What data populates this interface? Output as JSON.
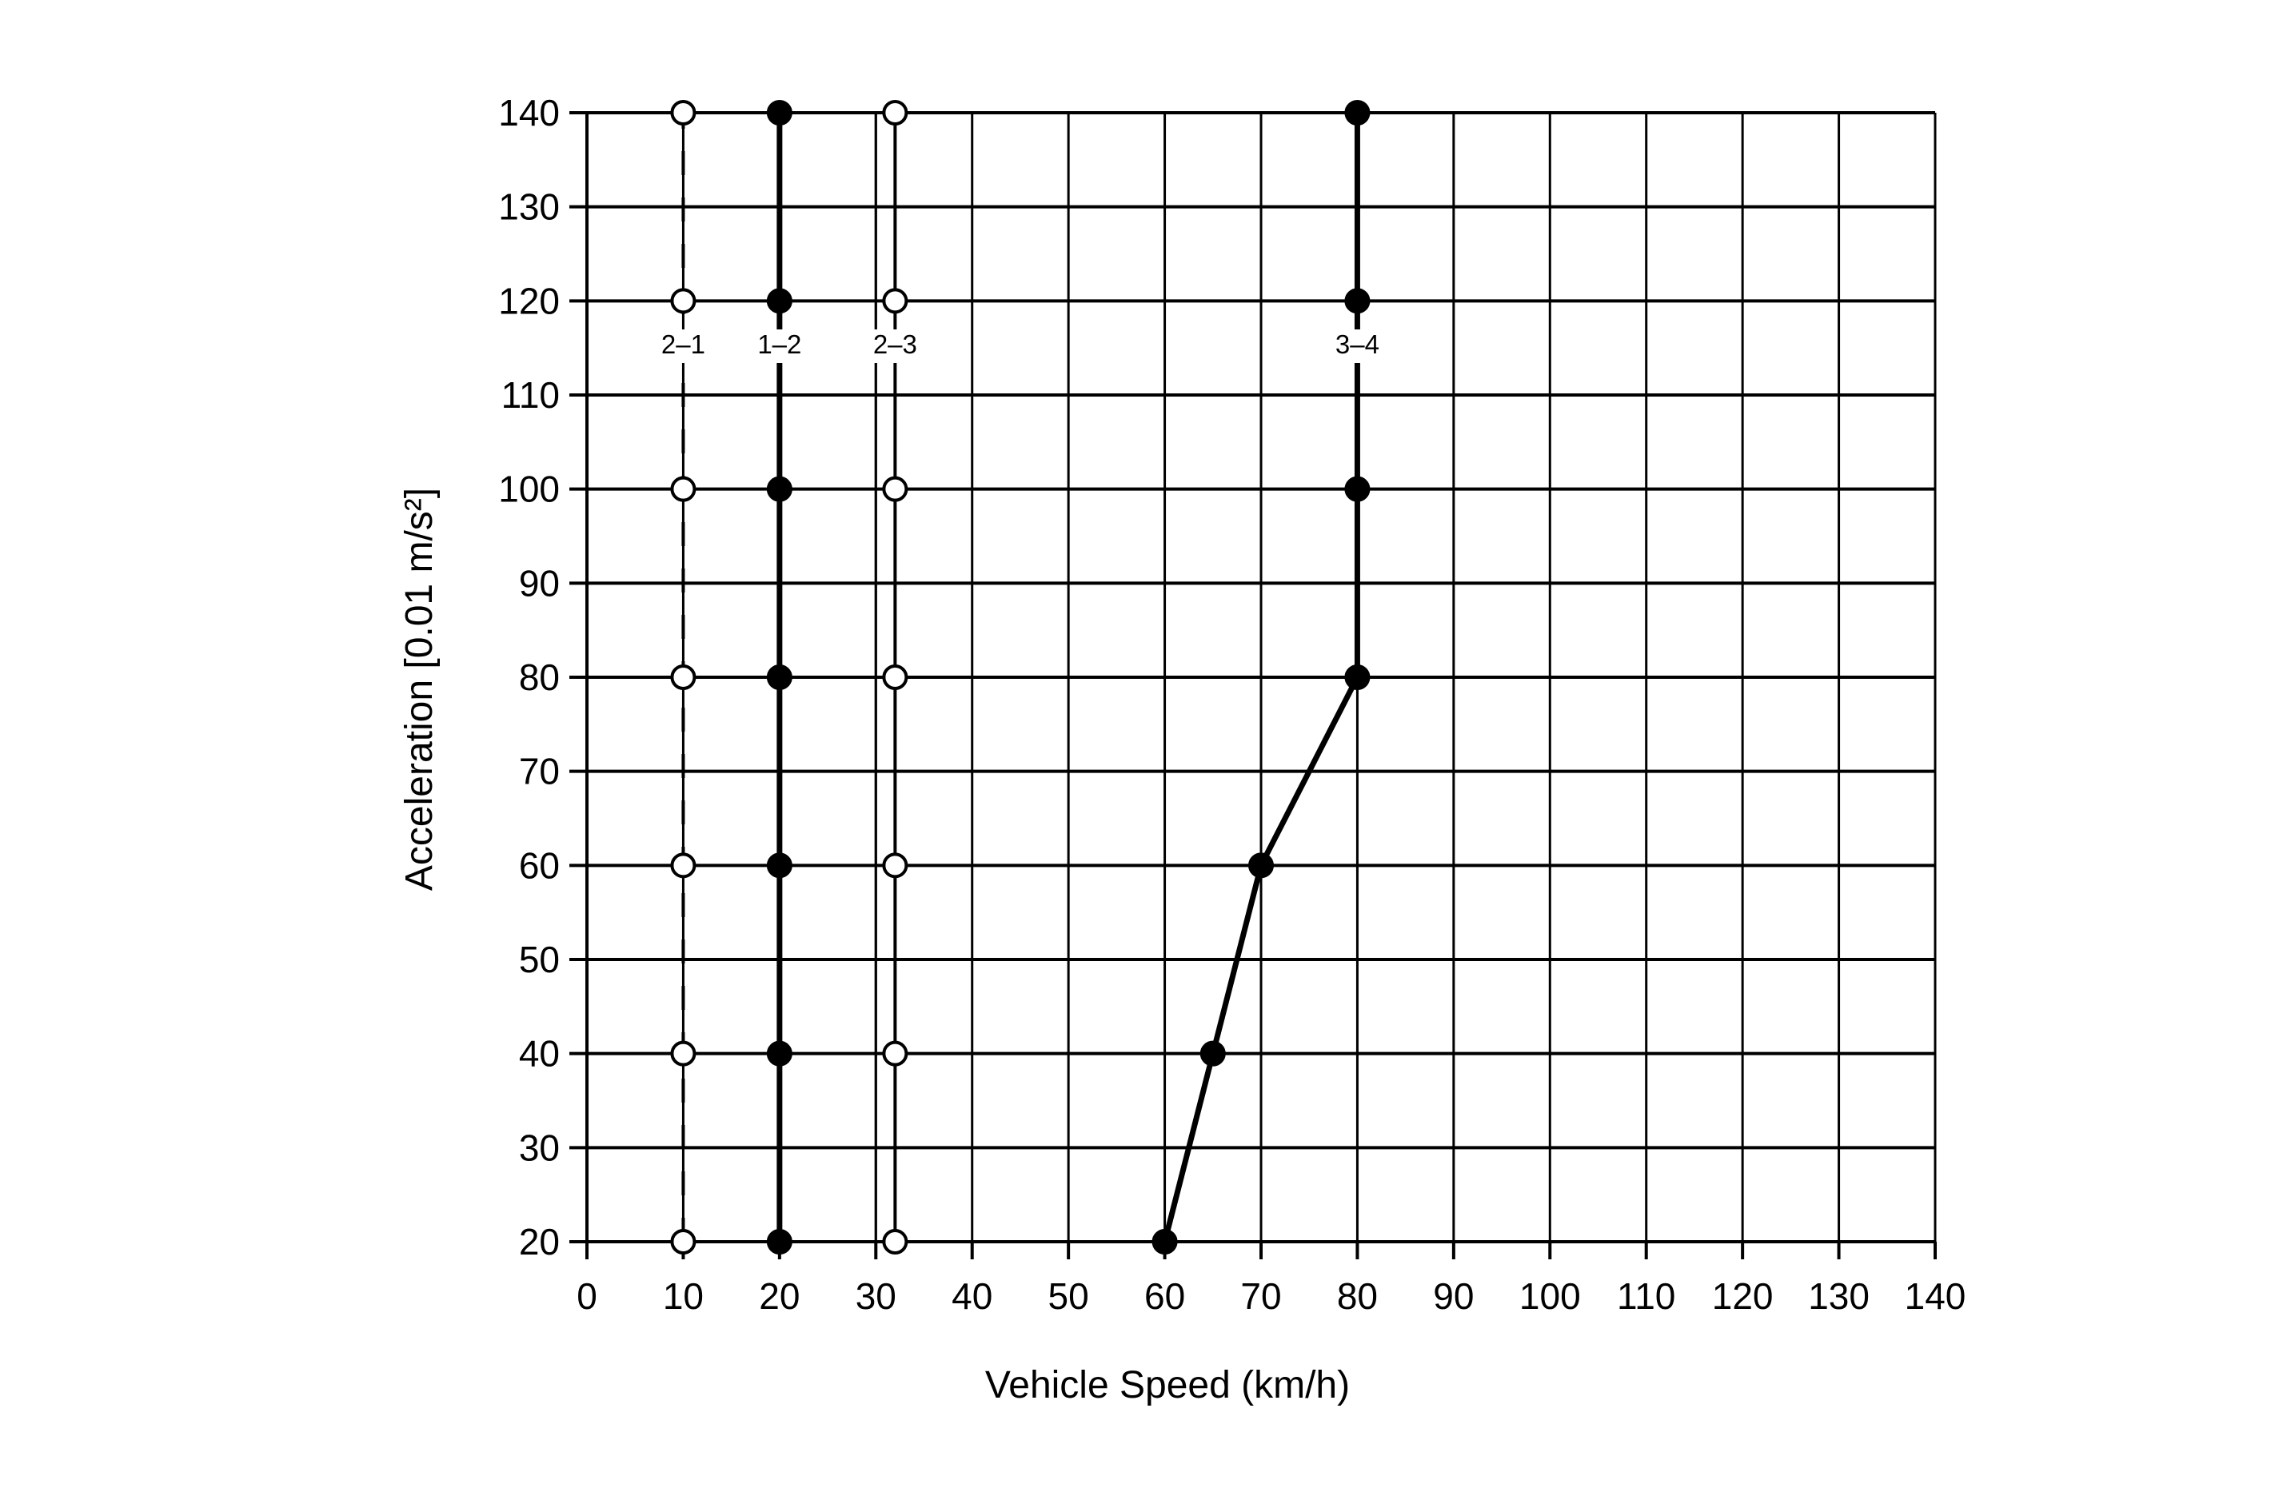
{
  "chart_data": {
    "type": "line",
    "title": "",
    "xlabel": "Vehicle Speed (km/h)",
    "ylabel": "Acceleration [0.01 m/s²]",
    "xlim": [
      0,
      140
    ],
    "ylim": [
      20,
      140
    ],
    "xticks": [
      0,
      10,
      20,
      30,
      40,
      50,
      60,
      70,
      80,
      90,
      100,
      110,
      120,
      130,
      140
    ],
    "yticks": [
      20,
      30,
      40,
      50,
      60,
      70,
      80,
      90,
      100,
      110,
      120,
      130,
      140
    ],
    "grid": true,
    "legend": "none",
    "extra_vertical_gridlines": [
      30,
      32
    ],
    "series": [
      {
        "name": "2–1",
        "line_style": "dashed",
        "marker": "open-circle",
        "color": "#000000",
        "points": [
          [
            10,
            20
          ],
          [
            10,
            40
          ],
          [
            10,
            60
          ],
          [
            10,
            80
          ],
          [
            10,
            100
          ],
          [
            10,
            120
          ],
          [
            10,
            140
          ]
        ]
      },
      {
        "name": "1–2",
        "line_style": "solid-bold",
        "marker": "filled-circle",
        "color": "#000000",
        "points": [
          [
            20,
            20
          ],
          [
            20,
            40
          ],
          [
            20,
            60
          ],
          [
            20,
            80
          ],
          [
            20,
            100
          ],
          [
            20,
            120
          ],
          [
            20,
            140
          ]
        ]
      },
      {
        "name": "2–3",
        "line_style": "solid",
        "marker": "open-circle",
        "color": "#000000",
        "points": [
          [
            32,
            20
          ],
          [
            32,
            40
          ],
          [
            32,
            60
          ],
          [
            32,
            80
          ],
          [
            32,
            100
          ],
          [
            32,
            120
          ],
          [
            32,
            140
          ]
        ]
      },
      {
        "name": "3–4",
        "line_style": "solid-bold",
        "marker": "filled-circle",
        "color": "#000000",
        "points": [
          [
            60,
            20
          ],
          [
            65,
            40
          ],
          [
            70,
            60
          ],
          [
            80,
            80
          ],
          [
            80,
            100
          ],
          [
            80,
            120
          ],
          [
            80,
            140
          ]
        ]
      }
    ]
  }
}
